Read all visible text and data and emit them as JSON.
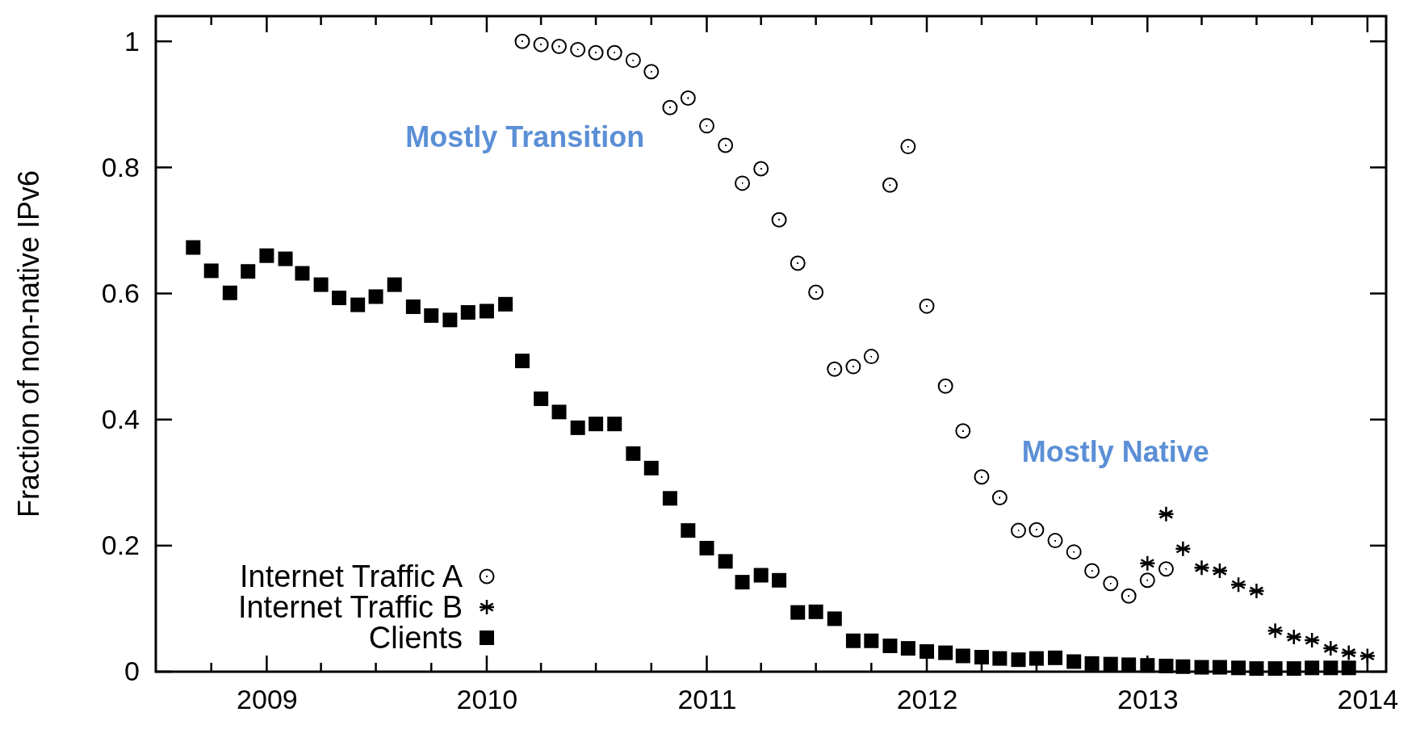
{
  "chart_data": {
    "type": "scatter",
    "ylabel": "Fraction of non-native IPv6",
    "xlim": [
      "2008-07",
      "2014-02"
    ],
    "xticks": [
      {
        "value": "2008-10",
        "label": null
      },
      "2009",
      {
        "value": "2009-04",
        "label": null
      },
      {
        "value": "2009-07",
        "label": null
      },
      {
        "value": "2009-10",
        "label": null
      },
      "2010",
      {
        "value": "2010-04",
        "label": null
      },
      {
        "value": "2010-07",
        "label": null
      },
      {
        "value": "2010-10",
        "label": null
      },
      "2011",
      {
        "value": "2011-04",
        "label": null
      },
      {
        "value": "2011-07",
        "label": null
      },
      {
        "value": "2011-10",
        "label": null
      },
      "2012",
      {
        "value": "2012-04",
        "label": null
      },
      {
        "value": "2012-07",
        "label": null
      },
      {
        "value": "2012-10",
        "label": null
      },
      "2013",
      {
        "value": "2013-04",
        "label": null
      },
      {
        "value": "2013-07",
        "label": null
      },
      {
        "value": "2013-10",
        "label": null
      },
      "2014"
    ],
    "ylim": [
      0,
      1.04
    ],
    "yticks": [
      0,
      0.2,
      0.4,
      0.6,
      0.8,
      1
    ],
    "grid": false,
    "legend": "bottom left",
    "annotations": [
      "Mostly Transition",
      "Mostly Native"
    ],
    "series": [
      {
        "name": "Internet Traffic A",
        "color": "#000000",
        "marker": "circle",
        "x": [
          "2010-03",
          "2010-04",
          "2010-05",
          "2010-06",
          "2010-07",
          "2010-08",
          "2010-09",
          "2010-10",
          "2010-11",
          "2010-12",
          "2011-01",
          "2011-02",
          "2011-03",
          "2011-04",
          "2011-05",
          "2011-06",
          "2011-07",
          "2011-08",
          "2011-09",
          "2011-10",
          "2011-11",
          "2011-12",
          "2012-01",
          "2012-02",
          "2012-03",
          "2012-04",
          "2012-05",
          "2012-06",
          "2012-07",
          "2012-08",
          "2012-09",
          "2012-10",
          "2012-11",
          "2012-12",
          "2013-01",
          "2013-02"
        ],
        "values": [
          1.0,
          0.995,
          0.992,
          0.987,
          0.982,
          0.982,
          0.97,
          0.952,
          0.895,
          0.91,
          0.866,
          0.835,
          0.775,
          0.798,
          0.717,
          0.648,
          0.602,
          0.48,
          0.484,
          0.5,
          0.772,
          0.833,
          0.58,
          0.453,
          0.382,
          0.309,
          0.276,
          0.224,
          0.225,
          0.208,
          0.19,
          0.16,
          0.14,
          0.12,
          0.145,
          0.163
        ]
      },
      {
        "name": "Internet Traffic B",
        "color": "#000000",
        "marker": "cross",
        "x": [
          "2013-01",
          "2013-02",
          "2013-03",
          "2013-04",
          "2013-05",
          "2013-06",
          "2013-07",
          "2013-08",
          "2013-09",
          "2013-10",
          "2013-11",
          "2013-12",
          "2014-01"
        ],
        "values": [
          0.172,
          0.25,
          0.195,
          0.165,
          0.16,
          0.138,
          0.128,
          0.065,
          0.055,
          0.05,
          0.037,
          0.03,
          0.025
        ]
      },
      {
        "name": "Clients",
        "color": "#000000",
        "marker": "square",
        "x": [
          "2008-09",
          "2008-10",
          "2008-11",
          "2008-12",
          "2009-01",
          "2009-02",
          "2009-03",
          "2009-04",
          "2009-05",
          "2009-06",
          "2009-07",
          "2009-08",
          "2009-09",
          "2009-10",
          "2009-11",
          "2009-12",
          "2010-01",
          "2010-02",
          "2010-03",
          "2010-04",
          "2010-05",
          "2010-06",
          "2010-07",
          "2010-08",
          "2010-09",
          "2010-10",
          "2010-11",
          "2010-12",
          "2011-01",
          "2011-02",
          "2011-03",
          "2011-04",
          "2011-05",
          "2011-06",
          "2011-07",
          "2011-08",
          "2011-09",
          "2011-10",
          "2011-11",
          "2011-12",
          "2012-01",
          "2012-02",
          "2012-03",
          "2012-04",
          "2012-05",
          "2012-06",
          "2012-07",
          "2012-08",
          "2012-09",
          "2012-10",
          "2012-11",
          "2012-12",
          "2013-01",
          "2013-02",
          "2013-03",
          "2013-04",
          "2013-05",
          "2013-06",
          "2013-07",
          "2013-08",
          "2013-09",
          "2013-10",
          "2013-11",
          "2013-12"
        ],
        "values": [
          0.673,
          0.636,
          0.601,
          0.635,
          0.66,
          0.655,
          0.632,
          0.614,
          0.593,
          0.582,
          0.595,
          0.614,
          0.579,
          0.565,
          0.558,
          0.57,
          0.572,
          0.583,
          0.493,
          0.433,
          0.412,
          0.387,
          0.393,
          0.393,
          0.346,
          0.323,
          0.275,
          0.224,
          0.196,
          0.175,
          0.142,
          0.153,
          0.145,
          0.094,
          0.095,
          0.084,
          0.049,
          0.049,
          0.041,
          0.037,
          0.032,
          0.03,
          0.025,
          0.023,
          0.021,
          0.019,
          0.021,
          0.022,
          0.016,
          0.013,
          0.012,
          0.011,
          0.01,
          0.009,
          0.008,
          0.007,
          0.007,
          0.006,
          0.005,
          0.005,
          0.005,
          0.006,
          0.006,
          0.006
        ]
      }
    ]
  }
}
